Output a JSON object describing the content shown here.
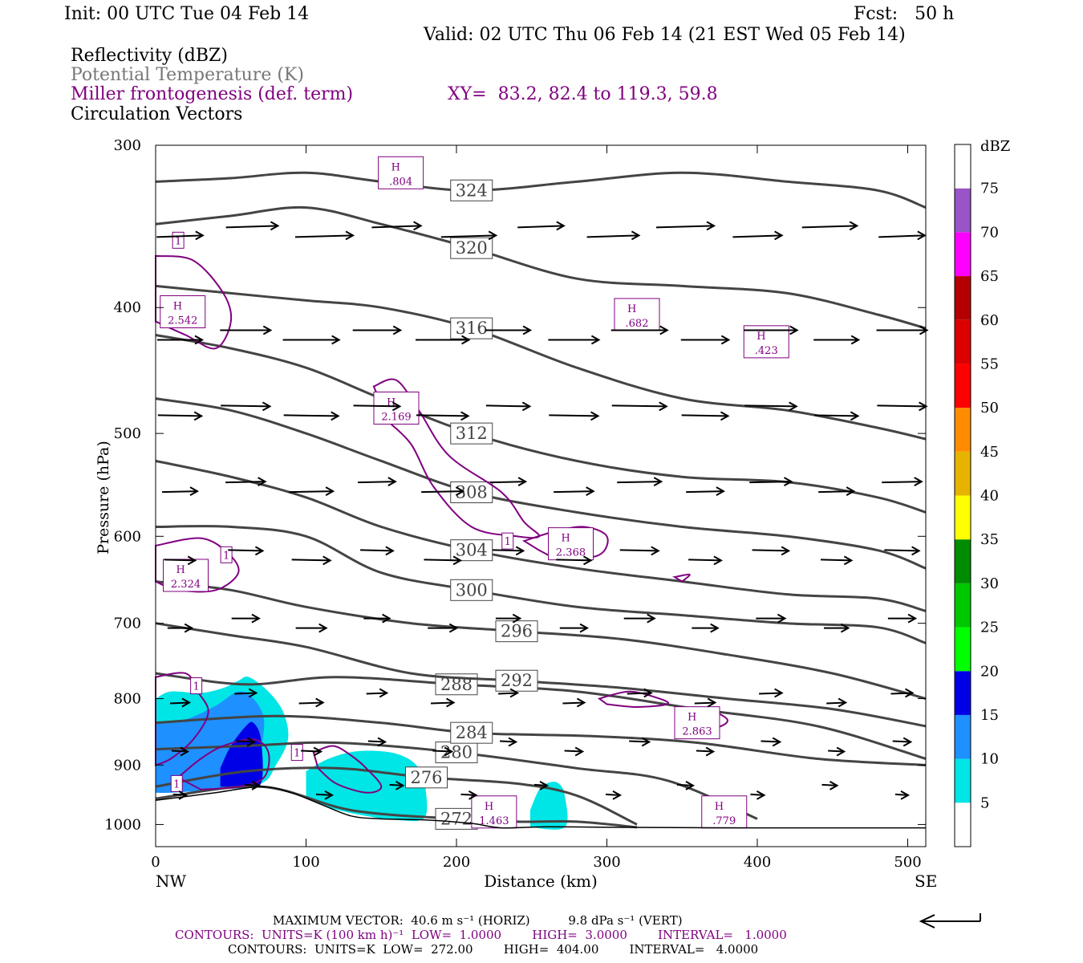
{
  "header": {
    "init": "Init: 00 UTC Tue 04 Feb 14",
    "fcst": "Fcst:   50 h",
    "valid": "Valid: 02 UTC Thu 06 Feb 14 (21 EST Wed 05 Feb 14)"
  },
  "fields": {
    "reflectivity": "Reflectivity (dBZ)",
    "theta": "Potential Temperature (K)",
    "miller": "Miller frontogenesis (def. term)",
    "xy": "XY=  83.2, 82.4 to 119.3, 59.8",
    "vectors": "Circulation Vectors"
  },
  "colors": {
    "theta_line": "#444444",
    "miller_line": "#800080",
    "vector": "#000000"
  },
  "colorbar": {
    "unit": "dBZ",
    "levels": [
      "5",
      "10",
      "15",
      "20",
      "25",
      "30",
      "35",
      "40",
      "45",
      "50",
      "55",
      "60",
      "65",
      "70",
      "75"
    ],
    "colors": [
      "#ffffff",
      "#00e5e5",
      "#1e90ff",
      "#0000e6",
      "#00ff00",
      "#00c800",
      "#008c00",
      "#ffff00",
      "#e6b400",
      "#ff8c00",
      "#ff0000",
      "#dc0000",
      "#b40000",
      "#ff00ff",
      "#9955c8",
      "#ffffff"
    ]
  },
  "chart_data": {
    "type": "cross-section",
    "xlabel": "Distance (km)",
    "ylabel": "Pressure (hPa)",
    "x_ticks": [
      "0",
      "100",
      "200",
      "300",
      "400",
      "500"
    ],
    "y_ticks": [
      "300",
      "400",
      "500",
      "600",
      "700",
      "800",
      "900",
      "1000"
    ],
    "xlim": [
      0,
      512
    ],
    "ylim": [
      1040,
      300
    ],
    "y_scale": "log",
    "x_end_labels": {
      "left": "NW",
      "right": "SE"
    },
    "theta_contours": [
      {
        "label": "272",
        "pts": [
          [
            0,
            955
          ],
          [
            70,
            935
          ],
          [
            130,
            975
          ],
          [
            200,
            990
          ],
          [
            240,
            995
          ],
          [
            280,
            995
          ],
          [
            320,
            1005
          ]
        ]
      },
      {
        "label": "276",
        "pts": [
          [
            0,
            935
          ],
          [
            60,
            910
          ],
          [
            120,
            905
          ],
          [
            180,
            920
          ],
          [
            240,
            930
          ],
          [
            280,
            950
          ],
          [
            320,
            1000
          ]
        ]
      },
      {
        "label": "280",
        "pts": [
          [
            0,
            875
          ],
          [
            60,
            870
          ],
          [
            120,
            865
          ],
          [
            200,
            880
          ],
          [
            280,
            905
          ],
          [
            340,
            925
          ],
          [
            400,
            990
          ]
        ]
      },
      {
        "label": "284",
        "pts": [
          [
            0,
            835
          ],
          [
            80,
            825
          ],
          [
            150,
            835
          ],
          [
            210,
            850
          ],
          [
            290,
            855
          ],
          [
            360,
            865
          ],
          [
            440,
            890
          ],
          [
            512,
            900
          ]
        ]
      },
      {
        "label": "288",
        "pts": [
          [
            0,
            765
          ],
          [
            60,
            780
          ],
          [
            120,
            770
          ],
          [
            200,
            780
          ],
          [
            280,
            790
          ],
          [
            360,
            815
          ],
          [
            440,
            840
          ],
          [
            512,
            890
          ]
        ]
      },
      {
        "label": "292",
        "pts": [
          [
            0,
            700
          ],
          [
            50,
            715
          ],
          [
            100,
            730
          ],
          [
            170,
            765
          ],
          [
            240,
            775
          ],
          [
            310,
            785
          ],
          [
            380,
            800
          ],
          [
            450,
            815
          ],
          [
            512,
            840
          ]
        ]
      },
      {
        "label": "296",
        "pts": [
          [
            0,
            650
          ],
          [
            50,
            660
          ],
          [
            100,
            680
          ],
          [
            170,
            700
          ],
          [
            240,
            710
          ],
          [
            310,
            720
          ],
          [
            380,
            740
          ],
          [
            450,
            765
          ],
          [
            512,
            800
          ]
        ]
      },
      {
        "label": "300",
        "pts": [
          [
            0,
            590
          ],
          [
            50,
            590
          ],
          [
            100,
            600
          ],
          [
            150,
            640
          ],
          [
            210,
            660
          ],
          [
            280,
            680
          ],
          [
            350,
            690
          ],
          [
            420,
            700
          ],
          [
            480,
            705
          ],
          [
            512,
            725
          ]
        ]
      },
      {
        "label": "304",
        "pts": [
          [
            0,
            525
          ],
          [
            50,
            540
          ],
          [
            100,
            560
          ],
          [
            150,
            590
          ],
          [
            210,
            615
          ],
          [
            280,
            635
          ],
          [
            350,
            650
          ],
          [
            420,
            665
          ],
          [
            480,
            670
          ],
          [
            512,
            685
          ]
        ]
      },
      {
        "label": "308",
        "pts": [
          [
            0,
            470
          ],
          [
            50,
            480
          ],
          [
            100,
            500
          ],
          [
            150,
            525
          ],
          [
            210,
            555
          ],
          [
            280,
            575
          ],
          [
            350,
            590
          ],
          [
            420,
            600
          ],
          [
            480,
            615
          ],
          [
            512,
            635
          ]
        ]
      },
      {
        "label": "312",
        "pts": [
          [
            0,
            420
          ],
          [
            50,
            430
          ],
          [
            100,
            445
          ],
          [
            150,
            470
          ],
          [
            210,
            500
          ],
          [
            280,
            525
          ],
          [
            350,
            540
          ],
          [
            420,
            545
          ],
          [
            480,
            560
          ],
          [
            512,
            575
          ]
        ]
      },
      {
        "label": "316",
        "pts": [
          [
            0,
            385
          ],
          [
            50,
            390
          ],
          [
            100,
            395
          ],
          [
            150,
            400
          ],
          [
            210,
            415
          ],
          [
            280,
            445
          ],
          [
            350,
            470
          ],
          [
            420,
            480
          ],
          [
            480,
            495
          ],
          [
            512,
            505
          ]
        ]
      },
      {
        "label": "320",
        "pts": [
          [
            0,
            345
          ],
          [
            50,
            340
          ],
          [
            100,
            335
          ],
          [
            150,
            345
          ],
          [
            210,
            360
          ],
          [
            280,
            380
          ],
          [
            350,
            385
          ],
          [
            420,
            390
          ],
          [
            480,
            405
          ],
          [
            512,
            415
          ]
        ]
      },
      {
        "label": "324",
        "pts": [
          [
            0,
            320
          ],
          [
            50,
            318
          ],
          [
            100,
            315
          ],
          [
            150,
            320
          ],
          [
            210,
            325
          ],
          [
            280,
            320
          ],
          [
            350,
            315
          ],
          [
            420,
            320
          ],
          [
            480,
            325
          ],
          [
            512,
            335
          ]
        ]
      }
    ],
    "frontogenesis_maxima": [
      {
        "label": ".804",
        "x": 163,
        "p": 315
      },
      {
        "label": "2.542",
        "x": 18,
        "p": 403
      },
      {
        "label": ".682",
        "x": 320,
        "p": 405
      },
      {
        "label": ".423",
        "x": 406,
        "p": 425
      },
      {
        "label": "2.169",
        "x": 160,
        "p": 478
      },
      {
        "label": "2.368",
        "x": 276,
        "p": 608
      },
      {
        "label": "2.324",
        "x": 20,
        "p": 643
      },
      {
        "label": "2.863",
        "x": 360,
        "p": 835
      },
      {
        "label": "1.463",
        "x": 225,
        "p": 978
      },
      {
        "label": ".779",
        "x": 378,
        "p": 978
      }
    ]
  },
  "footer": {
    "line1": "MAXIMUM VECTOR:  40.6 m s⁻¹ (HORIZ)          9.8 dPa s⁻¹ (VERT)",
    "line2": "CONTOURS:  UNITS=K (100 km h)⁻¹  LOW=  1.0000        HIGH=  3.0000        INTERVAL=   1.0000",
    "line3": "CONTOURS:  UNITS=K  LOW=  272.00        HIGH=  404.00        INTERVAL=   4.0000"
  }
}
